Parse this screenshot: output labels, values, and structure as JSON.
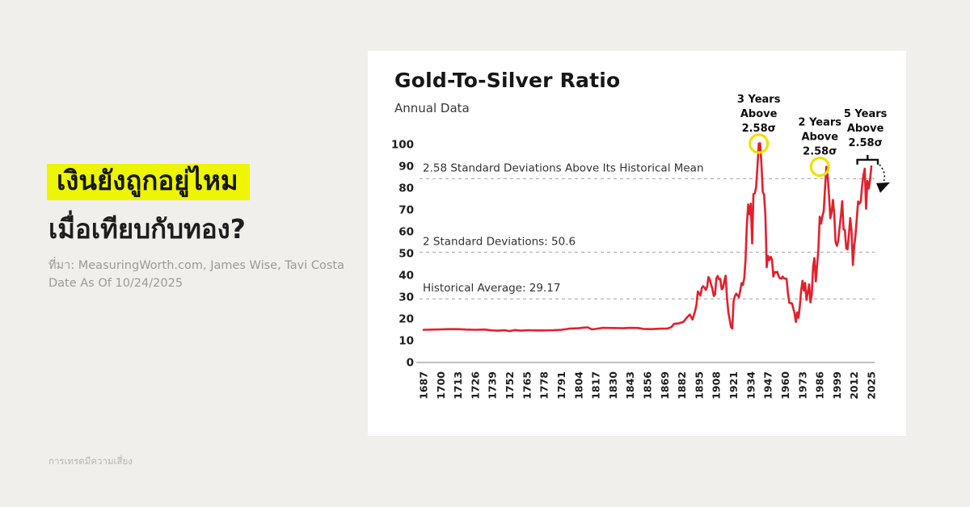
{
  "page": {
    "background": "#f1efec",
    "card_background": "#ffffff"
  },
  "left_panel": {
    "headline_line1": "เงินยังถูกอยู่ไหม",
    "headline_line2": "เมื่อเทียบกับทอง?",
    "highlight_color": "#edf500",
    "source_line1": "ที่มา: MeasuringWorth.com, James Wise, Tavi Costa",
    "source_line2": "Date As Of 10/24/2025",
    "disclaimer": "การเทรดมีความเสี่ยง"
  },
  "chart_card": {
    "title": "Gold-To-Silver Ratio",
    "subtitle": "Annual Data"
  },
  "chart_data": {
    "type": "line",
    "title": "Gold-To-Silver Ratio",
    "subtitle": "Annual Data",
    "line_color": "#e2202b",
    "axis_color": "#9a9a9a",
    "dash_color": "#b5b5b5",
    "text_color": "#1d1d1d",
    "marker_color": "#f2e000",
    "grid": false,
    "legend": null,
    "ylim": [
      0,
      100
    ],
    "y_ticks": [
      0,
      10,
      20,
      30,
      40,
      50,
      60,
      70,
      80,
      90,
      100
    ],
    "x_tick_years": [
      1687,
      1700,
      1713,
      1726,
      1739,
      1752,
      1765,
      1778,
      1791,
      1804,
      1817,
      1830,
      1843,
      1856,
      1869,
      1882,
      1895,
      1908,
      1921,
      1934,
      1947,
      1960,
      1973,
      1986,
      1999,
      2012,
      2025
    ],
    "reference_lines": [
      {
        "label": "2.58 Standard Deviations Above Its Historical Mean",
        "value": 84.3
      },
      {
        "label": "2 Standard Deviations: 50.6",
        "value": 50.6
      },
      {
        "label": "Historical Average: 29.17",
        "value": 29.17
      }
    ],
    "annotations": [
      {
        "lines": [
          "3 Years",
          "Above",
          "2.58σ"
        ],
        "year": 1940,
        "value": 100.4,
        "marker": "circle",
        "dx": 0
      },
      {
        "lines": [
          "2 Years",
          "Above",
          "2.58σ"
        ],
        "year": 1991,
        "value": 89.8,
        "marker": "circle",
        "dx": -8
      },
      {
        "lines": [
          "5 Years",
          "Above",
          "2.58σ"
        ],
        "year": 2020.5,
        "value": 93,
        "marker": "bracket",
        "bracket_years": [
          2015,
          2025
        ],
        "arrow": "down-right",
        "dx": 0
      }
    ],
    "series_name": "Gold-To-Silver Ratio (annual)",
    "series": [
      [
        1687,
        15.0
      ],
      [
        1695,
        15.1
      ],
      [
        1700,
        15.2
      ],
      [
        1706,
        15.3
      ],
      [
        1713,
        15.3
      ],
      [
        1719,
        15.1
      ],
      [
        1726,
        15.0
      ],
      [
        1733,
        15.1
      ],
      [
        1739,
        14.7
      ],
      [
        1744,
        14.6
      ],
      [
        1748,
        14.8
      ],
      [
        1752,
        14.4
      ],
      [
        1756,
        14.9
      ],
      [
        1760,
        14.6
      ],
      [
        1766,
        14.8
      ],
      [
        1772,
        14.7
      ],
      [
        1778,
        14.7
      ],
      [
        1785,
        14.8
      ],
      [
        1791,
        15.0
      ],
      [
        1797,
        15.5
      ],
      [
        1804,
        15.7
      ],
      [
        1808,
        16.0
      ],
      [
        1811,
        16.1
      ],
      [
        1814,
        15.2
      ],
      [
        1817,
        15.4
      ],
      [
        1822,
        15.9
      ],
      [
        1830,
        15.8
      ],
      [
        1838,
        15.7
      ],
      [
        1843,
        15.9
      ],
      [
        1849,
        15.8
      ],
      [
        1853,
        15.4
      ],
      [
        1859,
        15.3
      ],
      [
        1866,
        15.5
      ],
      [
        1871,
        15.6
      ],
      [
        1874,
        16.2
      ],
      [
        1876,
        17.7
      ],
      [
        1880,
        18.0
      ],
      [
        1883,
        18.6
      ],
      [
        1886,
        20.8
      ],
      [
        1888,
        22.0
      ],
      [
        1890,
        19.7
      ],
      [
        1892,
        23.7
      ],
      [
        1893,
        26.5
      ],
      [
        1894,
        32.6
      ],
      [
        1895,
        31.6
      ],
      [
        1896,
        30.7
      ],
      [
        1897,
        34.2
      ],
      [
        1898,
        35.0
      ],
      [
        1899,
        34.4
      ],
      [
        1900,
        33.3
      ],
      [
        1901,
        34.7
      ],
      [
        1902,
        39.2
      ],
      [
        1903,
        38.1
      ],
      [
        1904,
        35.7
      ],
      [
        1905,
        33.9
      ],
      [
        1906,
        30.5
      ],
      [
        1907,
        31.2
      ],
      [
        1908,
        38.6
      ],
      [
        1909,
        39.7
      ],
      [
        1910,
        38.2
      ],
      [
        1911,
        38.3
      ],
      [
        1912,
        33.6
      ],
      [
        1913,
        34.2
      ],
      [
        1914,
        37.4
      ],
      [
        1915,
        39.8
      ],
      [
        1916,
        30.1
      ],
      [
        1917,
        23.1
      ],
      [
        1918,
        19.8
      ],
      [
        1919,
        16.3
      ],
      [
        1920,
        15.6
      ],
      [
        1921,
        28.0
      ],
      [
        1922,
        30.5
      ],
      [
        1923,
        31.6
      ],
      [
        1924,
        30.8
      ],
      [
        1925,
        29.9
      ],
      [
        1926,
        32.9
      ],
      [
        1927,
        36.4
      ],
      [
        1928,
        35.5
      ],
      [
        1929,
        38.6
      ],
      [
        1930,
        47.0
      ],
      [
        1931,
        63.0
      ],
      [
        1932,
        72.5
      ],
      [
        1933,
        68.0
      ],
      [
        1934,
        72.9
      ],
      [
        1935,
        54.6
      ],
      [
        1936,
        77.3
      ],
      [
        1937,
        77.6
      ],
      [
        1938,
        80.4
      ],
      [
        1939,
        89.6
      ],
      [
        1940,
        100.4
      ],
      [
        1941,
        100.6
      ],
      [
        1942,
        90.9
      ],
      [
        1943,
        78.3
      ],
      [
        1944,
        77.0
      ],
      [
        1945,
        67.3
      ],
      [
        1946,
        43.7
      ],
      [
        1947,
        48.8
      ],
      [
        1948,
        47.0
      ],
      [
        1949,
        48.5
      ],
      [
        1950,
        47.2
      ],
      [
        1951,
        39.4
      ],
      [
        1952,
        41.5
      ],
      [
        1953,
        41.3
      ],
      [
        1954,
        41.6
      ],
      [
        1955,
        39.5
      ],
      [
        1956,
        38.6
      ],
      [
        1957,
        38.5
      ],
      [
        1958,
        39.4
      ],
      [
        1959,
        38.5
      ],
      [
        1960,
        38.6
      ],
      [
        1961,
        38.3
      ],
      [
        1962,
        32.1
      ],
      [
        1963,
        27.4
      ],
      [
        1964,
        27.2
      ],
      [
        1965,
        27.1
      ],
      [
        1966,
        25.0
      ],
      [
        1967,
        22.6
      ],
      [
        1968,
        18.6
      ],
      [
        1969,
        23.0
      ],
      [
        1970,
        20.5
      ],
      [
        1971,
        26.0
      ],
      [
        1972,
        33.0
      ],
      [
        1973,
        37.5
      ],
      [
        1974,
        33.0
      ],
      [
        1975,
        36.5
      ],
      [
        1976,
        28.7
      ],
      [
        1977,
        32.2
      ],
      [
        1978,
        35.8
      ],
      [
        1979,
        27.6
      ],
      [
        1980,
        31.1
      ],
      [
        1981,
        44.0
      ],
      [
        1982,
        47.9
      ],
      [
        1983,
        37.2
      ],
      [
        1984,
        44.5
      ],
      [
        1985,
        51.8
      ],
      [
        1986,
        66.9
      ],
      [
        1987,
        63.7
      ],
      [
        1988,
        67.2
      ],
      [
        1989,
        69.3
      ],
      [
        1990,
        79.6
      ],
      [
        1991,
        89.8
      ],
      [
        1992,
        85.5
      ],
      [
        1993,
        76.7
      ],
      [
        1994,
        66.2
      ],
      [
        1995,
        69.0
      ],
      [
        1996,
        74.6
      ],
      [
        1997,
        67.6
      ],
      [
        1998,
        55.3
      ],
      [
        1999,
        53.5
      ],
      [
        2000,
        56.0
      ],
      [
        2001,
        62.1
      ],
      [
        2002,
        67.4
      ],
      [
        2003,
        74.0
      ],
      [
        2004,
        61.1
      ],
      [
        2005,
        60.7
      ],
      [
        2006,
        52.4
      ],
      [
        2007,
        51.9
      ],
      [
        2008,
        58.2
      ],
      [
        2009,
        66.3
      ],
      [
        2010,
        60.7
      ],
      [
        2011,
        44.7
      ],
      [
        2012,
        53.3
      ],
      [
        2013,
        58.3
      ],
      [
        2014,
        66.3
      ],
      [
        2015,
        73.9
      ],
      [
        2016,
        72.8
      ],
      [
        2017,
        73.9
      ],
      [
        2018,
        81.1
      ],
      [
        2019,
        86.0
      ],
      [
        2020,
        88.9
      ],
      [
        2021,
        70.5
      ],
      [
        2022,
        83.3
      ],
      [
        2023,
        79.8
      ],
      [
        2024,
        84.0
      ],
      [
        2025,
        90.0
      ]
    ]
  }
}
